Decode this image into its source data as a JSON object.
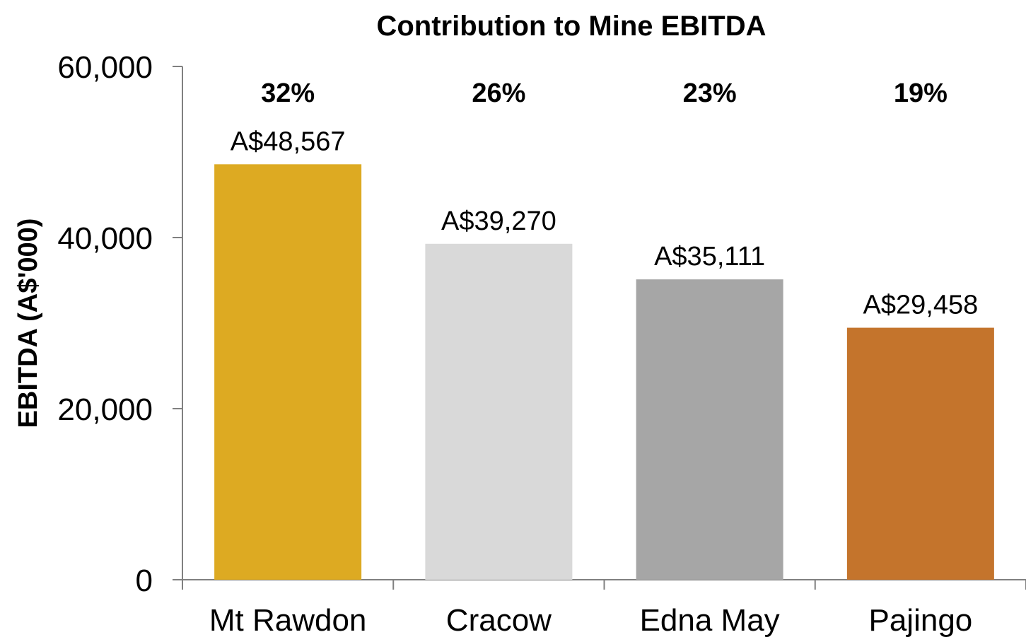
{
  "chart_data": {
    "type": "bar",
    "title": "Contribution to Mine EBITDA",
    "xlabel": "",
    "ylabel": "EBITDA (A$'000)",
    "ylim": [
      0,
      60000
    ],
    "yticks": [
      0,
      20000,
      40000,
      60000
    ],
    "ytick_labels": [
      "0",
      "20,000",
      "40,000",
      "60,000"
    ],
    "grid": false,
    "categories": [
      "Mt Rawdon",
      "Cracow",
      "Edna May",
      "Pajingo"
    ],
    "values": [
      48567,
      39270,
      35111,
      29458
    ],
    "value_labels": [
      "A$48,567",
      "A$39,270",
      "A$35,111",
      "A$29,458"
    ],
    "percent_labels": [
      "32%",
      "26%",
      "23%",
      "19%"
    ],
    "colors": [
      "#DDAA22",
      "#D9D9D9",
      "#A6A6A6",
      "#C4742C"
    ]
  }
}
